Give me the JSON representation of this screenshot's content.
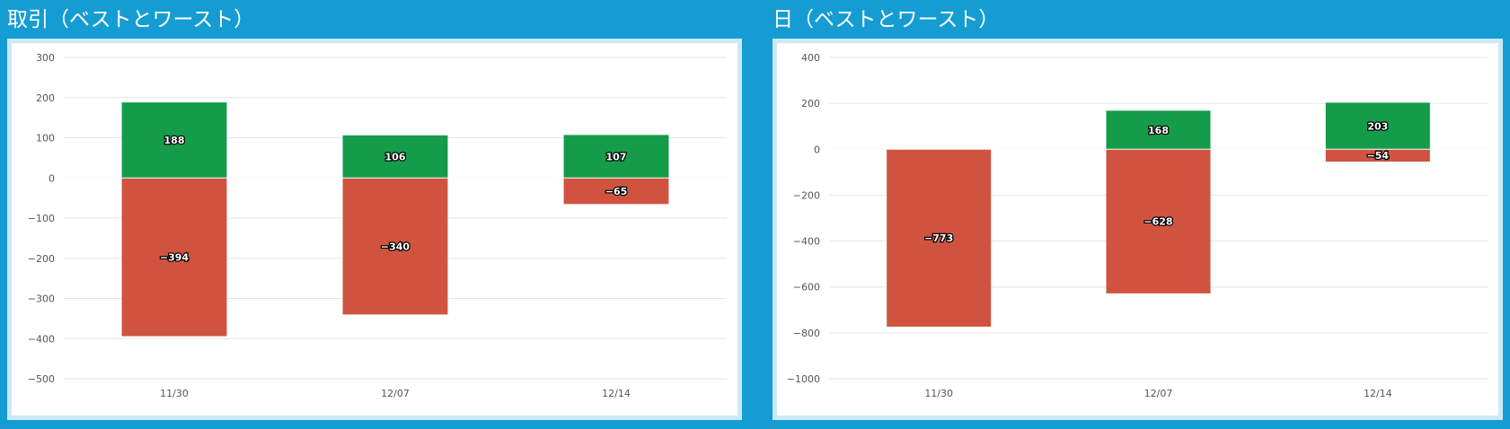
{
  "chart_data": [
    {
      "type": "bar",
      "stacked": true,
      "title": "取引（ベストとワースト）",
      "categories": [
        "11/30",
        "12/07",
        "12/14"
      ],
      "series": [
        {
          "color": "#149c4a",
          "values": [
            188,
            106,
            107
          ]
        },
        {
          "color": "#d05340",
          "values": [
            -394,
            -340,
            -65
          ]
        }
      ],
      "data_labels": [
        [
          "188",
          "106",
          "107"
        ],
        [
          "−394",
          "−340",
          "−65"
        ]
      ],
      "ylim": [
        -500,
        300
      ],
      "yticks": [
        300,
        200,
        100,
        0,
        -100,
        -200,
        -300,
        -400,
        -500
      ],
      "ytick_labels": [
        "300",
        "200",
        "100",
        "0",
        "−100",
        "−200",
        "−300",
        "−400",
        "−500"
      ],
      "grid": true
    },
    {
      "type": "bar",
      "stacked": true,
      "title": "日（ベストとワースト）",
      "categories": [
        "11/30",
        "12/07",
        "12/14"
      ],
      "series": [
        {
          "color": "#149c4a",
          "values": [
            0,
            168,
            203
          ]
        },
        {
          "color": "#d05340",
          "values": [
            -773,
            -628,
            -54
          ]
        }
      ],
      "data_labels": [
        [
          "",
          "168",
          "203"
        ],
        [
          "−773",
          "−628",
          "−54"
        ]
      ],
      "ylim": [
        -1000,
        400
      ],
      "yticks": [
        400,
        200,
        0,
        -200,
        -400,
        -600,
        -800,
        -1000
      ],
      "ytick_labels": [
        "400",
        "200",
        "0",
        "−200",
        "−400",
        "−600",
        "−800",
        "−1000"
      ],
      "grid": true
    }
  ]
}
